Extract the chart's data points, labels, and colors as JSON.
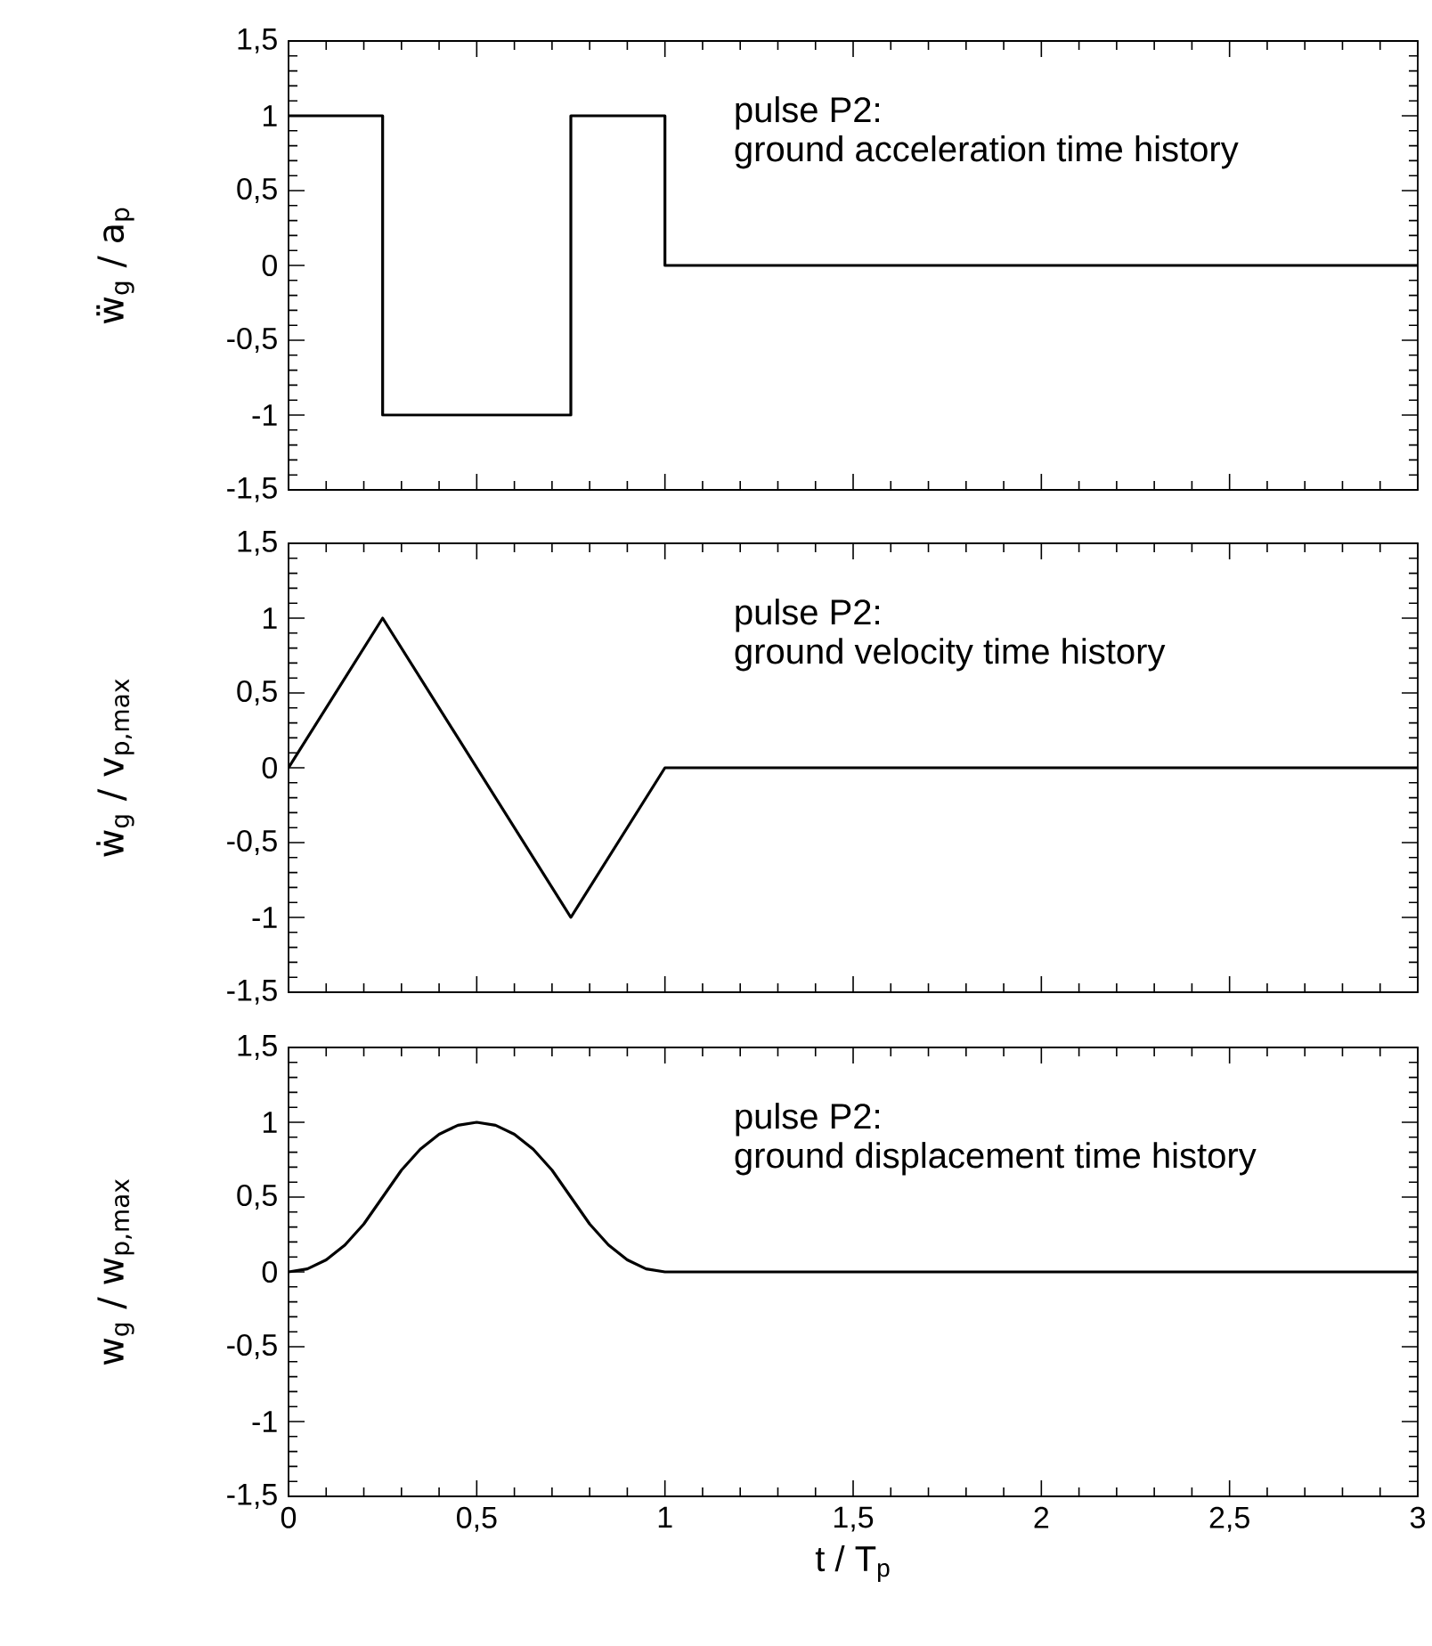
{
  "chart_data": [
    {
      "type": "step",
      "ylabel": "ẅ$_{g}$ / a$_{p}$",
      "annotations": [
        "pulse P2:",
        "ground acceleration time history"
      ],
      "x": [
        0,
        0.25,
        0.75,
        1,
        3
      ],
      "values": [
        1,
        -1,
        1,
        0,
        0
      ],
      "color": "#000000",
      "line_style": "solid",
      "xlim": [
        0,
        3
      ],
      "ylim": [
        -1.5,
        1.5
      ],
      "tick_labels": "y",
      "xticks": [
        {
          "value": 0,
          "label": null
        },
        {
          "value": 0.5,
          "label": null
        },
        {
          "value": 1,
          "label": null
        },
        {
          "value": 1.5,
          "label": null
        },
        {
          "value": 2,
          "label": null
        },
        {
          "value": 2.5,
          "label": null
        },
        {
          "value": 3,
          "label": null
        }
      ],
      "yticks": [
        {
          "value": -1.5,
          "label": "-1,5"
        },
        -1,
        {
          "value": -0.5,
          "label": "-0,5"
        },
        0,
        {
          "value": 0.5,
          "label": "0,5"
        },
        1,
        {
          "value": 1.5,
          "label": "1,5"
        }
      ]
    },
    {
      "type": "line",
      "ylabel": "ẇ$_{g}$ / v$_{p,max}$",
      "annotations": [
        "pulse P2:",
        "ground velocity time history"
      ],
      "x": [
        0,
        0.25,
        0.75,
        1,
        3
      ],
      "values": [
        0,
        1,
        -1,
        0,
        0
      ],
      "color": "#000000",
      "line_style": "solid",
      "xlim": [
        0,
        3
      ],
      "ylim": [
        -1.5,
        1.5
      ],
      "tick_labels": "y",
      "xticks": [
        {
          "value": 0,
          "label": null
        },
        {
          "value": 0.5,
          "label": null
        },
        {
          "value": 1,
          "label": null
        },
        {
          "value": 1.5,
          "label": null
        },
        {
          "value": 2,
          "label": null
        },
        {
          "value": 2.5,
          "label": null
        },
        {
          "value": 3,
          "label": null
        }
      ],
      "yticks": [
        {
          "value": -1.5,
          "label": "-1,5"
        },
        -1,
        {
          "value": -0.5,
          "label": "-0,5"
        },
        0,
        {
          "value": 0.5,
          "label": "0,5"
        },
        1,
        {
          "value": 1.5,
          "label": "1,5"
        }
      ]
    },
    {
      "type": "line",
      "ylabel": "w$_{g}$ / w$_{p,max}$",
      "xlabel": "t / T$_{p}$",
      "annotations": [
        "pulse P2:",
        "ground displacement time history"
      ],
      "x": [
        0,
        0.05,
        0.1,
        0.15,
        0.2,
        0.25,
        0.3,
        0.35,
        0.4,
        0.45,
        0.5,
        0.55,
        0.6,
        0.65,
        0.7,
        0.75,
        0.8,
        0.85,
        0.9,
        0.95,
        1,
        3
      ],
      "values": [
        0,
        0.02,
        0.08,
        0.18,
        0.32,
        0.5,
        0.68,
        0.82,
        0.92,
        0.98,
        1,
        0.98,
        0.92,
        0.82,
        0.68,
        0.5,
        0.32,
        0.18,
        0.08,
        0.02,
        0,
        0
      ],
      "color": "#000000",
      "line_style": "solid",
      "xlim": [
        0,
        3
      ],
      "ylim": [
        -1.5,
        1.5
      ],
      "xticks": [
        0,
        {
          "value": 0.5,
          "label": "0,5"
        },
        1,
        {
          "value": 1.5,
          "label": "1,5"
        },
        2,
        {
          "value": 2.5,
          "label": "2,5"
        },
        3
      ],
      "yticks": [
        {
          "value": -1.5,
          "label": "-1,5"
        },
        -1,
        {
          "value": -0.5,
          "label": "-0,5"
        },
        0,
        {
          "value": 0.5,
          "label": "0,5"
        },
        1,
        {
          "value": 1.5,
          "label": "1,5"
        }
      ]
    }
  ]
}
